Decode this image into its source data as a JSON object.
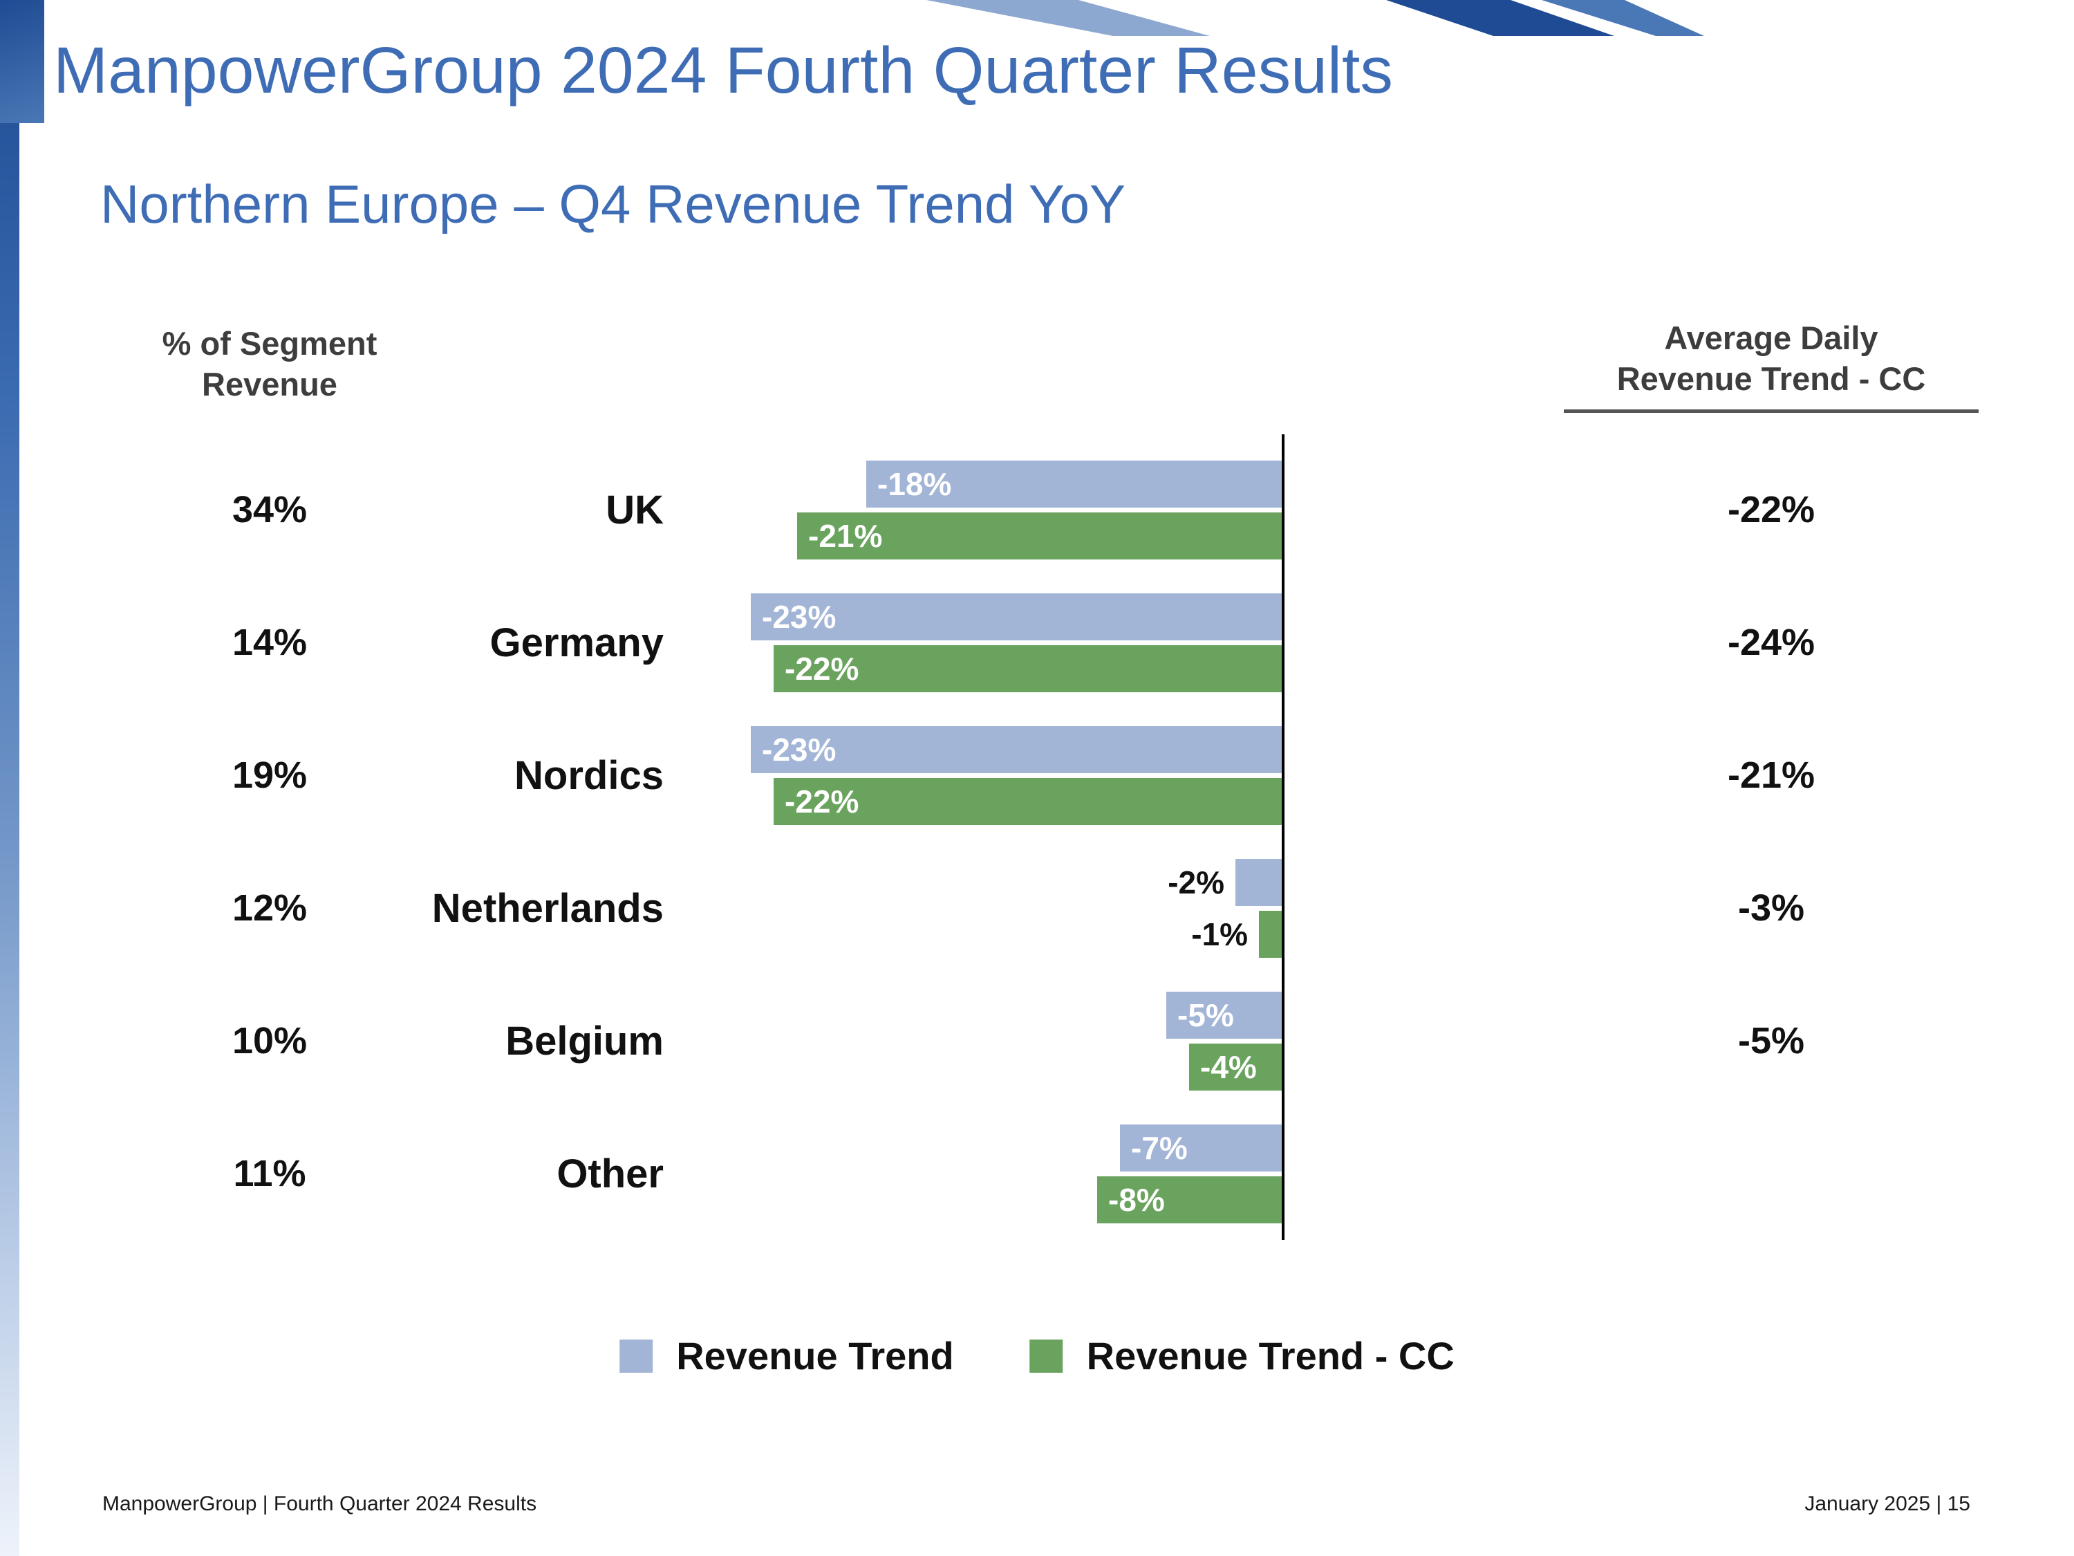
{
  "slide": {
    "title": "ManpowerGroup 2024 Fourth Quarter Results",
    "subtitle": "Northern Europe – Q4 Revenue Trend YoY"
  },
  "chart_data": {
    "type": "bar",
    "orientation": "horizontal",
    "left_header": "% of Segment\nRevenue",
    "right_header": "Average Daily\nRevenue Trend - CC",
    "categories": [
      "UK",
      "Germany",
      "Nordics",
      "Netherlands",
      "Belgium",
      "Other"
    ],
    "segment_revenue_pct": [
      "34%",
      "14%",
      "19%",
      "12%",
      "10%",
      "11%"
    ],
    "series": [
      {
        "name": "Revenue Trend",
        "color": "#a3b5d6",
        "values": [
          -18,
          -23,
          -23,
          -2,
          -5,
          -7
        ]
      },
      {
        "name": "Revenue Trend - CC",
        "color": "#6aa35e",
        "values": [
          -21,
          -22,
          -22,
          -1,
          -4,
          -8
        ]
      }
    ],
    "avg_daily_revenue_trend_cc": [
      "-22%",
      "-24%",
      "-21%",
      "-3%",
      "-5%",
      ""
    ],
    "xlim": [
      -25,
      0
    ],
    "legend": [
      {
        "label": "Revenue Trend",
        "color": "#a3b5d6"
      },
      {
        "label": "Revenue Trend - CC",
        "color": "#6aa35e"
      }
    ],
    "legend_position": "bottom",
    "grid": false
  },
  "footer": {
    "left": "ManpowerGroup  |  Fourth Quarter 2024 Results",
    "right": "January 2025   |   15"
  },
  "colors": {
    "title_blue": "#3f6db5",
    "bar_blue": "#a3b5d6",
    "bar_green": "#6aa35e",
    "deco_dark_blue": "#1e4b93",
    "deco_mid_blue": "#4a77b5",
    "deco_light_blue": "#8da8d0"
  }
}
